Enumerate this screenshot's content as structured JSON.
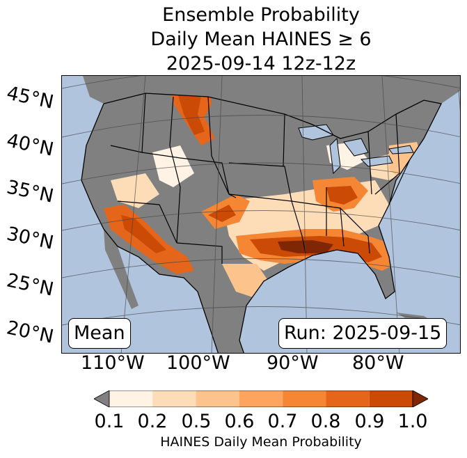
{
  "title": [
    "Ensemble Probability",
    "Daily Mean HAINES ≥ 6",
    "2025-09-14 12z-12z"
  ],
  "lat_labels": [
    "45°N",
    "40°N",
    "35°N",
    "30°N",
    "25°N",
    "20°N"
  ],
  "lon_labels": [
    "110°W",
    "100°W",
    "90°W",
    "80°W"
  ],
  "mean_label": "Mean",
  "run_label": "Run: 2025-09-15",
  "colorbar": {
    "label": "HAINES Daily Mean Probability",
    "ticks": [
      "0.1",
      "0.2",
      "0.5",
      "0.6",
      "0.7",
      "0.8",
      "0.9",
      "1.0"
    ],
    "under_color": "#808080",
    "colors": [
      "#fff3e6",
      "#fdddb8",
      "#fdc38d",
      "#fda55e",
      "#f58634",
      "#e5661a",
      "#cb4a05"
    ],
    "over_color": "#7f2704"
  },
  "colors": {
    "ocean": "#b0c4de",
    "land_below_threshold": "#808080"
  }
}
